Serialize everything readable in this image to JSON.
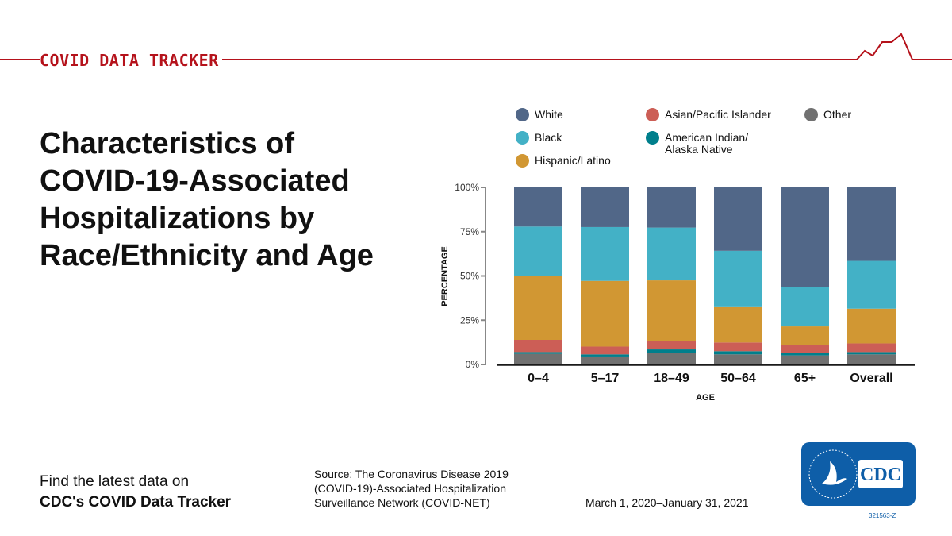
{
  "header": {
    "brand": "COVID DATA TRACKER"
  },
  "title": "Characteristics of COVID-19-Associated Hospitalizations by Race/Ethnicity and Age",
  "footer": {
    "find_line1": "Find the latest data on",
    "find_line2": "CDC's COVID Data Tracker",
    "source": "Source: The Coronavirus Disease 2019 (COVID-19)-Associated Hospitalization Surveillance Network (COVID-NET)",
    "date_range": "March 1, 2020–January 31, 2021",
    "logo_text": "CDC",
    "code": "321563-Z"
  },
  "chart_data": {
    "type": "bar",
    "stacked": true,
    "xlabel": "AGE",
    "ylabel": "PERCENTAGE",
    "yticks": [
      "0%",
      "25%",
      "50%",
      "75%",
      "100%"
    ],
    "ylim": [
      0,
      100
    ],
    "categories": [
      "0–4",
      "5–17",
      "18–49",
      "50–64",
      "65+",
      "Overall"
    ],
    "series": [
      {
        "name": "Other",
        "color": "#717171",
        "values": [
          6.0,
          4.5,
          6.4,
          5.7,
          5.1,
          5.7
        ]
      },
      {
        "name": "American Indian/ Alaska Native",
        "color": "#007f8c",
        "values": [
          1.0,
          1.2,
          2.1,
          1.8,
          1.2,
          1.3
        ]
      },
      {
        "name": "Asian/Pacific Islander",
        "color": "#cc5e56",
        "values": [
          6.9,
          4.4,
          4.9,
          4.9,
          4.7,
          4.9
        ]
      },
      {
        "name": "Hispanic/Latino",
        "color": "#d19733",
        "values": [
          36.1,
          37.1,
          34.1,
          20.4,
          10.5,
          19.6
        ]
      },
      {
        "name": "Black",
        "color": "#43b1c6",
        "values": [
          27.9,
          30.4,
          29.8,
          31.4,
          22.4,
          27.0
        ]
      },
      {
        "name": "White",
        "color": "#516788",
        "values": [
          22.1,
          22.4,
          22.7,
          35.8,
          56.1,
          41.5
        ]
      }
    ],
    "legend": {
      "placement": "top",
      "order": [
        "White",
        "Asian/Pacific Islander",
        "Other",
        "Black",
        "American Indian/ Alaska Native",
        "Hispanic/Latino"
      ]
    }
  }
}
